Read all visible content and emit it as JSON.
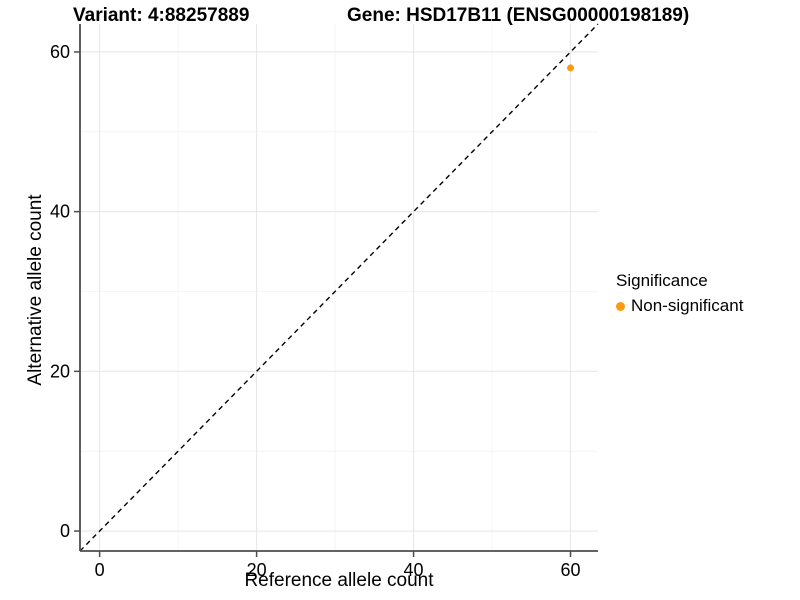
{
  "chart_data": {
    "type": "scatter",
    "title_left": "Variant: 4:88257889",
    "title_right": "Gene: HSD17B11 (ENSG00000198189)",
    "xlabel": "Reference allele count",
    "ylabel": "Alternative allele count",
    "xlim": [
      -2.5,
      63.5
    ],
    "ylim": [
      -2.5,
      63.5
    ],
    "x_ticks": [
      0,
      20,
      40,
      60
    ],
    "y_ticks": [
      0,
      20,
      40,
      60
    ],
    "x_minor_ticks": [
      10,
      30,
      50
    ],
    "y_minor_ticks": [
      10,
      30,
      50
    ],
    "grid": true,
    "reference_line": {
      "type": "identity-y-equals-x",
      "style": "dashed",
      "color": "#000000"
    },
    "series": [
      {
        "name": "Non-significant",
        "color": "#FB9A0E",
        "points": [
          {
            "x": 60,
            "y": 58
          }
        ]
      }
    ],
    "legend": {
      "title": "Significance",
      "position": "right",
      "items": [
        {
          "label": "Non-significant",
          "color": "#FB9A0E"
        }
      ]
    },
    "colors": {
      "background": "#ffffff",
      "text": "#000000",
      "axis_line": "#4d4d4d",
      "grid_major": "#e8e8e8",
      "grid_minor": "#f3f3f3"
    }
  }
}
